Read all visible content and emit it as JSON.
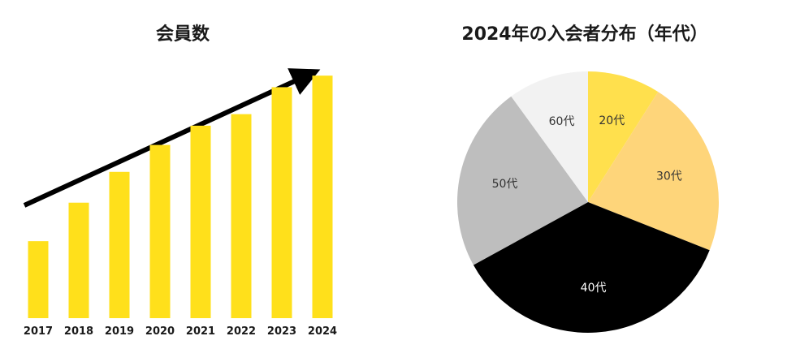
{
  "chart_data": [
    {
      "type": "bar",
      "title": "会員数",
      "categories": [
        "2017",
        "2018",
        "2019",
        "2020",
        "2021",
        "2022",
        "2023",
        "2024"
      ],
      "values": [
        20,
        30,
        38,
        45,
        50,
        53,
        60,
        63
      ],
      "ylim": [
        0,
        70
      ],
      "grid": false,
      "legend": "none",
      "colors": {
        "bar": "#FFE01B",
        "arrow": "#000000",
        "label": "#1a1a1a"
      },
      "annotations": [
        "upward-trend-arrow"
      ]
    },
    {
      "type": "pie",
      "title": "2024年の入会者分布（年代）",
      "categories": [
        "20代",
        "30代",
        "40代",
        "50代",
        "60代"
      ],
      "values": [
        9,
        22,
        36,
        23,
        10
      ],
      "colors": [
        "#FFE04D",
        "#FED57A",
        "#000000",
        "#BEBEBE",
        "#F2F2F2"
      ],
      "label_colors": [
        "#333333",
        "#333333",
        "#ffffff",
        "#333333",
        "#333333"
      ],
      "legend": "none"
    }
  ]
}
